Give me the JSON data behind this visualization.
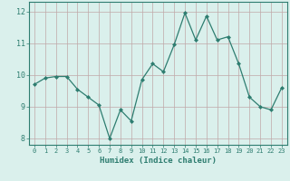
{
  "x": [
    0,
    1,
    2,
    3,
    4,
    5,
    6,
    7,
    8,
    9,
    10,
    11,
    12,
    13,
    14,
    15,
    16,
    17,
    18,
    19,
    20,
    21,
    22,
    23
  ],
  "y": [
    9.7,
    9.9,
    9.95,
    9.95,
    9.55,
    9.3,
    9.05,
    8.0,
    8.9,
    8.55,
    9.85,
    10.35,
    10.1,
    10.95,
    11.95,
    11.1,
    11.85,
    11.1,
    11.2,
    10.35,
    9.3,
    9.0,
    8.9,
    9.6
  ],
  "line_color": "#2e7d70",
  "marker": "D",
  "marker_size": 2,
  "bg_color": "#daf0ec",
  "grid_color": "#c0a8a8",
  "axis_color": "#2e7d70",
  "xlabel": "Humidex (Indice chaleur)",
  "ylim": [
    7.8,
    12.3
  ],
  "xlim": [
    -0.5,
    23.5
  ],
  "yticks": [
    8,
    9,
    10,
    11,
    12
  ],
  "xticks": [
    0,
    1,
    2,
    3,
    4,
    5,
    6,
    7,
    8,
    9,
    10,
    11,
    12,
    13,
    14,
    15,
    16,
    17,
    18,
    19,
    20,
    21,
    22,
    23
  ]
}
